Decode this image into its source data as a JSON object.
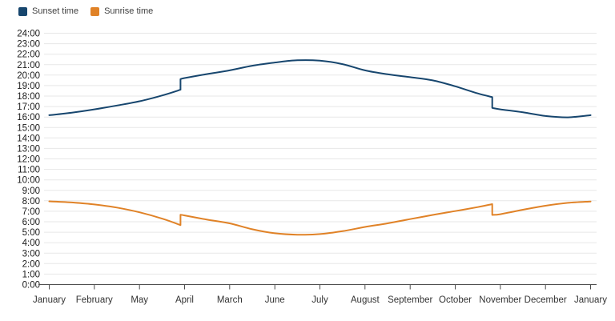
{
  "page": {
    "background": "#ffffff"
  },
  "legend": {
    "position": "top-left",
    "items": [
      {
        "label": "Sunset time",
        "color": "#17466e"
      },
      {
        "label": "Sunrise time",
        "color": "#e08227"
      }
    ]
  },
  "chart_data": {
    "type": "line",
    "title": "",
    "xlabel": "",
    "ylabel": "",
    "x_tick_labels": [
      "January",
      "February",
      "May",
      "April",
      "March",
      "June",
      "July",
      "August",
      "September",
      "October",
      "November",
      "December",
      "January"
    ],
    "x_values": "tick index 0 to 12, evenly spaced",
    "y_ticks": [
      "0:00",
      "1:00",
      "2:00",
      "3:00",
      "4:00",
      "5:00",
      "6:00",
      "7:00",
      "8:00",
      "9:00",
      "10:00",
      "11:00",
      "12:00",
      "13:00",
      "14:00",
      "15:00",
      "16:00",
      "17:00",
      "18:00",
      "19:00",
      "20:00",
      "21:00",
      "22:00",
      "23:00",
      "24:00"
    ],
    "ylim": [
      0,
      24
    ],
    "y_unit": "hour of day",
    "grid": "horizontal",
    "legend_position": "top-left",
    "colors": {
      "grid": "#e7e7e7",
      "axis": "#4d4d4d",
      "tick_label": "#1a1a1a",
      "month_label": "#333333"
    },
    "series": [
      {
        "name": "Sunset time",
        "color": "#17466e",
        "note": "vertical jump up ~1h at x=2.91 (before April tick) and drop ~1h at x=9.82 (before November tick)",
        "segments": [
          [
            [
              0,
              16.17
            ],
            [
              0.5,
              16.42
            ],
            [
              1,
              16.73
            ],
            [
              1.5,
              17.1
            ],
            [
              2,
              17.5
            ],
            [
              2.5,
              18.05
            ],
            [
              2.91,
              18.6
            ]
          ],
          [
            [
              2.91,
              19.62
            ],
            [
              3,
              19.72
            ],
            [
              3.5,
              20.1
            ],
            [
              4,
              20.45
            ],
            [
              4.5,
              20.9
            ],
            [
              5,
              21.2
            ],
            [
              5.5,
              21.42
            ],
            [
              6,
              21.38
            ],
            [
              6.5,
              21.05
            ],
            [
              7,
              20.45
            ],
            [
              7.5,
              20.08
            ],
            [
              8,
              19.8
            ],
            [
              8.5,
              19.5
            ],
            [
              9,
              18.93
            ],
            [
              9.5,
              18.25
            ],
            [
              9.82,
              17.9
            ]
          ],
          [
            [
              9.82,
              16.87
            ],
            [
              10,
              16.73
            ],
            [
              10.5,
              16.45
            ],
            [
              11,
              16.1
            ],
            [
              11.5,
              15.97
            ],
            [
              12,
              16.17
            ]
          ]
        ]
      },
      {
        "name": "Sunrise time",
        "color": "#e08227",
        "note": "vertical jump up ~1h at x=2.91 (before April tick) and drop ~1h at x=9.82 (before November tick)",
        "segments": [
          [
            [
              0,
              7.95
            ],
            [
              0.5,
              7.84
            ],
            [
              1,
              7.65
            ],
            [
              1.5,
              7.35
            ],
            [
              2,
              6.9
            ],
            [
              2.5,
              6.3
            ],
            [
              2.91,
              5.68
            ]
          ],
          [
            [
              2.91,
              6.67
            ],
            [
              3,
              6.6
            ],
            [
              3.5,
              6.2
            ],
            [
              4,
              5.85
            ],
            [
              4.5,
              5.28
            ],
            [
              5,
              4.9
            ],
            [
              5.5,
              4.76
            ],
            [
              6,
              4.82
            ],
            [
              6.5,
              5.1
            ],
            [
              7,
              5.5
            ],
            [
              7.5,
              5.85
            ],
            [
              8,
              6.25
            ],
            [
              8.5,
              6.65
            ],
            [
              9,
              7.02
            ],
            [
              9.5,
              7.4
            ],
            [
              9.82,
              7.68
            ]
          ],
          [
            [
              9.82,
              6.65
            ],
            [
              10,
              6.72
            ],
            [
              10.5,
              7.15
            ],
            [
              11,
              7.53
            ],
            [
              11.5,
              7.8
            ],
            [
              12,
              7.93
            ]
          ]
        ]
      }
    ]
  }
}
